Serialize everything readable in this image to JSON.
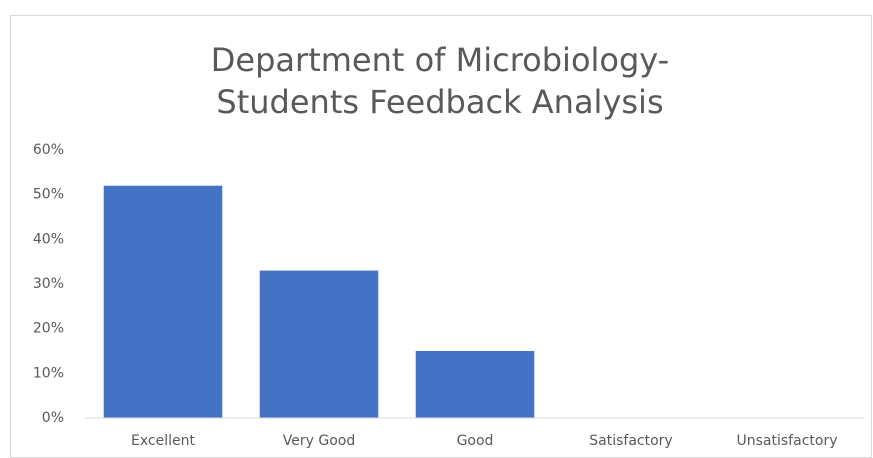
{
  "chart_data": {
    "type": "bar",
    "title": [
      "Department of Microbiology-",
      "Students Feedback Analysis"
    ],
    "categories": [
      "Excellent",
      "Very Good",
      "Good",
      "Satisfactory",
      "Unsatisfactory"
    ],
    "values": [
      52,
      33,
      15,
      0,
      0
    ],
    "color": "#4472c4",
    "ylim": [
      0,
      60
    ],
    "yticks": [
      {
        "value": 0,
        "label": "0%"
      },
      {
        "value": 10,
        "label": "10%"
      },
      {
        "value": 20,
        "label": "20%"
      },
      {
        "value": 30,
        "label": "30%"
      },
      {
        "value": 40,
        "label": "40%"
      },
      {
        "value": 50,
        "label": "50%"
      },
      {
        "value": 60,
        "label": "60%"
      }
    ],
    "grid": false
  }
}
